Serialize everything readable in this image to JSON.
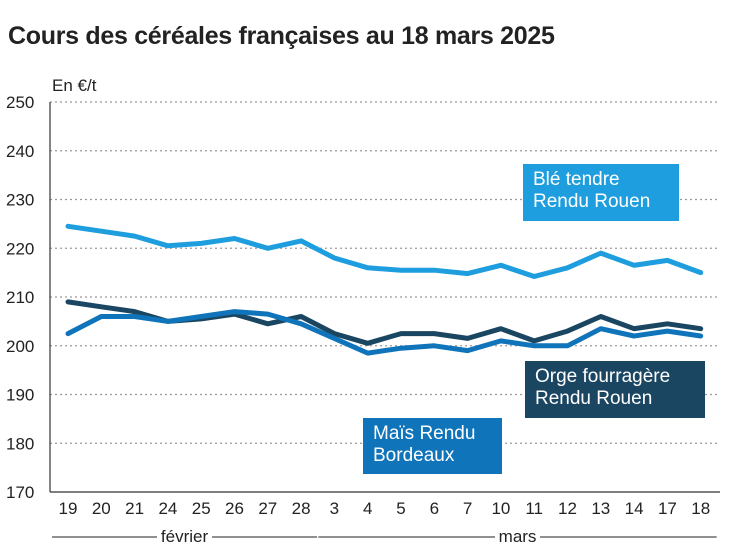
{
  "title": "Cours des céréales françaises au 18 mars 2025",
  "chart_data": {
    "type": "line",
    "unit_label": "En €/t",
    "ylim": [
      170,
      250
    ],
    "yticks": [
      170,
      180,
      190,
      200,
      210,
      220,
      230,
      240,
      250
    ],
    "grid": true,
    "categories": [
      "19",
      "20",
      "21",
      "24",
      "25",
      "26",
      "27",
      "28",
      "3",
      "4",
      "5",
      "6",
      "7",
      "10",
      "11",
      "12",
      "13",
      "14",
      "17",
      "18"
    ],
    "months": [
      {
        "label": "février",
        "from": 0,
        "to": 7
      },
      {
        "label": "mars",
        "from": 8,
        "to": 19
      }
    ],
    "series": [
      {
        "name_lines": [
          "Blé tendre",
          "Rendu Rouen"
        ],
        "color": "#1e9ede",
        "values": [
          224.5,
          223.5,
          222.5,
          220.5,
          221,
          222,
          220,
          221.5,
          218,
          216,
          215.5,
          215.5,
          214.8,
          216.5,
          214.2,
          216,
          219,
          216.5,
          217.5,
          215
        ]
      },
      {
        "name_lines": [
          "Orge fourragère",
          "Rendu Rouen"
        ],
        "color": "#1a4662",
        "values": [
          209,
          208,
          207,
          205,
          205.5,
          206.5,
          204.5,
          206,
          202.5,
          200.5,
          202.5,
          202.5,
          201.5,
          203.5,
          201,
          203,
          206,
          203.5,
          204.5,
          203.5
        ]
      },
      {
        "name_lines": [
          "Maïs Rendu",
          "Bordeaux"
        ],
        "color": "#0f74b9",
        "values": [
          202.5,
          206,
          206,
          205,
          206,
          207,
          206.5,
          204.5,
          201.5,
          198.5,
          199.5,
          200,
          199,
          201,
          200,
          200,
          203.5,
          202,
          203,
          202
        ]
      }
    ]
  }
}
